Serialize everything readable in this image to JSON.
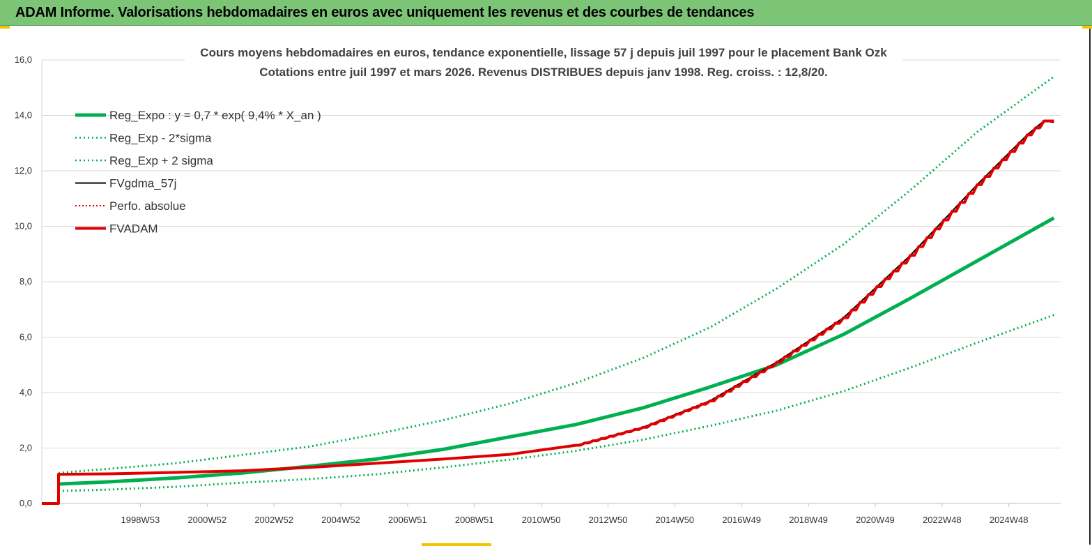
{
  "header": {
    "title": "ADAM Informe. Valorisations hebdomadaires en euros avec uniquement les revenus et des courbes de tendances"
  },
  "chart_data": {
    "type": "line",
    "title": "Cours moyens hebdomadaires en euros, tendance exponentielle, lissage 57 j depuis juil 1997 pour le placement Bank Ozk",
    "subtitle": "Cotations entre juil 1997 et mars 2026. Revenus DISTRIBUES depuis janv 1998. Reg. croiss. : 12,8/20.",
    "xlabel": "",
    "ylabel": "",
    "ylim": [
      0,
      16
    ],
    "y_ticks": [
      "0,0",
      "2,0",
      "4,0",
      "6,0",
      "8,0",
      "10,0",
      "12,0",
      "14,0",
      "16,0"
    ],
    "x_range": [
      1996.0,
      2026.5
    ],
    "x_tick_labels": [
      "1998W53",
      "2000W52",
      "2002W52",
      "2004W52",
      "2006W51",
      "2008W51",
      "2010W50",
      "2012W50",
      "2014W50",
      "2016W49",
      "2018W49",
      "2020W49",
      "2022W48",
      "2024W48"
    ],
    "x_tick_years": [
      1998.95,
      2000.95,
      2002.95,
      2004.95,
      2006.95,
      2008.95,
      2010.95,
      2012.95,
      2014.95,
      2016.95,
      2018.95,
      2020.95,
      2022.95,
      2024.95
    ],
    "grid": true,
    "legend_position": "top-left",
    "colors": {
      "green": "#00b050",
      "black": "#000000",
      "red": "#e00000"
    },
    "legend": [
      {
        "label": "Reg_Expo : y = 0,7 * exp( 9,4% *  X_an )",
        "color": "#00b050",
        "style": "solid-thick"
      },
      {
        "label": "Reg_Exp - 2*sigma",
        "color": "#00b050",
        "style": "dotted"
      },
      {
        "label": "Reg_Exp + 2 sigma",
        "color": "#00b050",
        "style": "dotted"
      },
      {
        "label": "FVgdma_57j",
        "color": "#000000",
        "style": "solid"
      },
      {
        "label": "Perfo. absolue",
        "color": "#e00000",
        "style": "dotted"
      },
      {
        "label": "FVADAM",
        "color": "#e00000",
        "style": "solid-thick"
      }
    ],
    "series": [
      {
        "name": "Reg_Expo : y = 0,7 * exp( 9,4% *  X_an )",
        "x": [
          1996.5,
          1998,
          2000,
          2002,
          2004,
          2006,
          2008,
          2010,
          2012,
          2014,
          2016,
          2018,
          2020,
          2022,
          2024,
          2026.3
        ],
        "y": [
          0.7,
          0.78,
          0.92,
          1.1,
          1.34,
          1.6,
          1.95,
          2.4,
          2.85,
          3.45,
          4.2,
          5.0,
          6.1,
          7.4,
          8.75,
          10.3
        ]
      },
      {
        "name": "Reg_Exp - 2*sigma",
        "x": [
          1996.5,
          1998,
          2000,
          2002,
          2004,
          2006,
          2008,
          2010,
          2012,
          2014,
          2016,
          2018,
          2020,
          2022,
          2024,
          2026.3
        ],
        "y": [
          0.45,
          0.5,
          0.6,
          0.75,
          0.88,
          1.05,
          1.3,
          1.58,
          1.9,
          2.3,
          2.8,
          3.35,
          4.05,
          4.9,
          5.8,
          6.8
        ]
      },
      {
        "name": "Reg_Exp + 2 sigma",
        "x": [
          1996.5,
          1998,
          2000,
          2002,
          2004,
          2006,
          2008,
          2010,
          2012,
          2014,
          2016,
          2018,
          2020,
          2022,
          2024,
          2026.3
        ],
        "y": [
          1.1,
          1.25,
          1.45,
          1.75,
          2.05,
          2.5,
          3.0,
          3.6,
          4.35,
          5.25,
          6.35,
          7.75,
          9.35,
          11.3,
          13.4,
          15.4
        ]
      },
      {
        "name": "FVgdma_57j",
        "x": [
          1996.0,
          1996.5,
          1996.5,
          1998,
          2000,
          2002,
          2004,
          2006,
          2008,
          2010,
          2012,
          2014,
          2016,
          2018,
          2020,
          2022,
          2024,
          2025.5,
          2026.0,
          2026.3
        ],
        "y": [
          0,
          0,
          1.05,
          1.07,
          1.12,
          1.18,
          1.3,
          1.45,
          1.6,
          1.77,
          2.1,
          2.75,
          3.7,
          5.1,
          6.7,
          8.95,
          11.5,
          13.3,
          13.8,
          13.75
        ]
      },
      {
        "name": "FVADAM",
        "x": [
          1996.0,
          1996.5,
          1996.5,
          1998,
          2000,
          2002,
          2004,
          2006,
          2008,
          2010,
          2012,
          2014,
          2016,
          2018,
          2020,
          2022,
          2024,
          2025.5,
          2026.0,
          2026.3
        ],
        "y": [
          0,
          0,
          1.05,
          1.07,
          1.12,
          1.18,
          1.3,
          1.45,
          1.6,
          1.77,
          2.1,
          2.75,
          3.7,
          5.1,
          6.7,
          8.95,
          11.5,
          13.3,
          13.8,
          13.8
        ]
      }
    ]
  }
}
